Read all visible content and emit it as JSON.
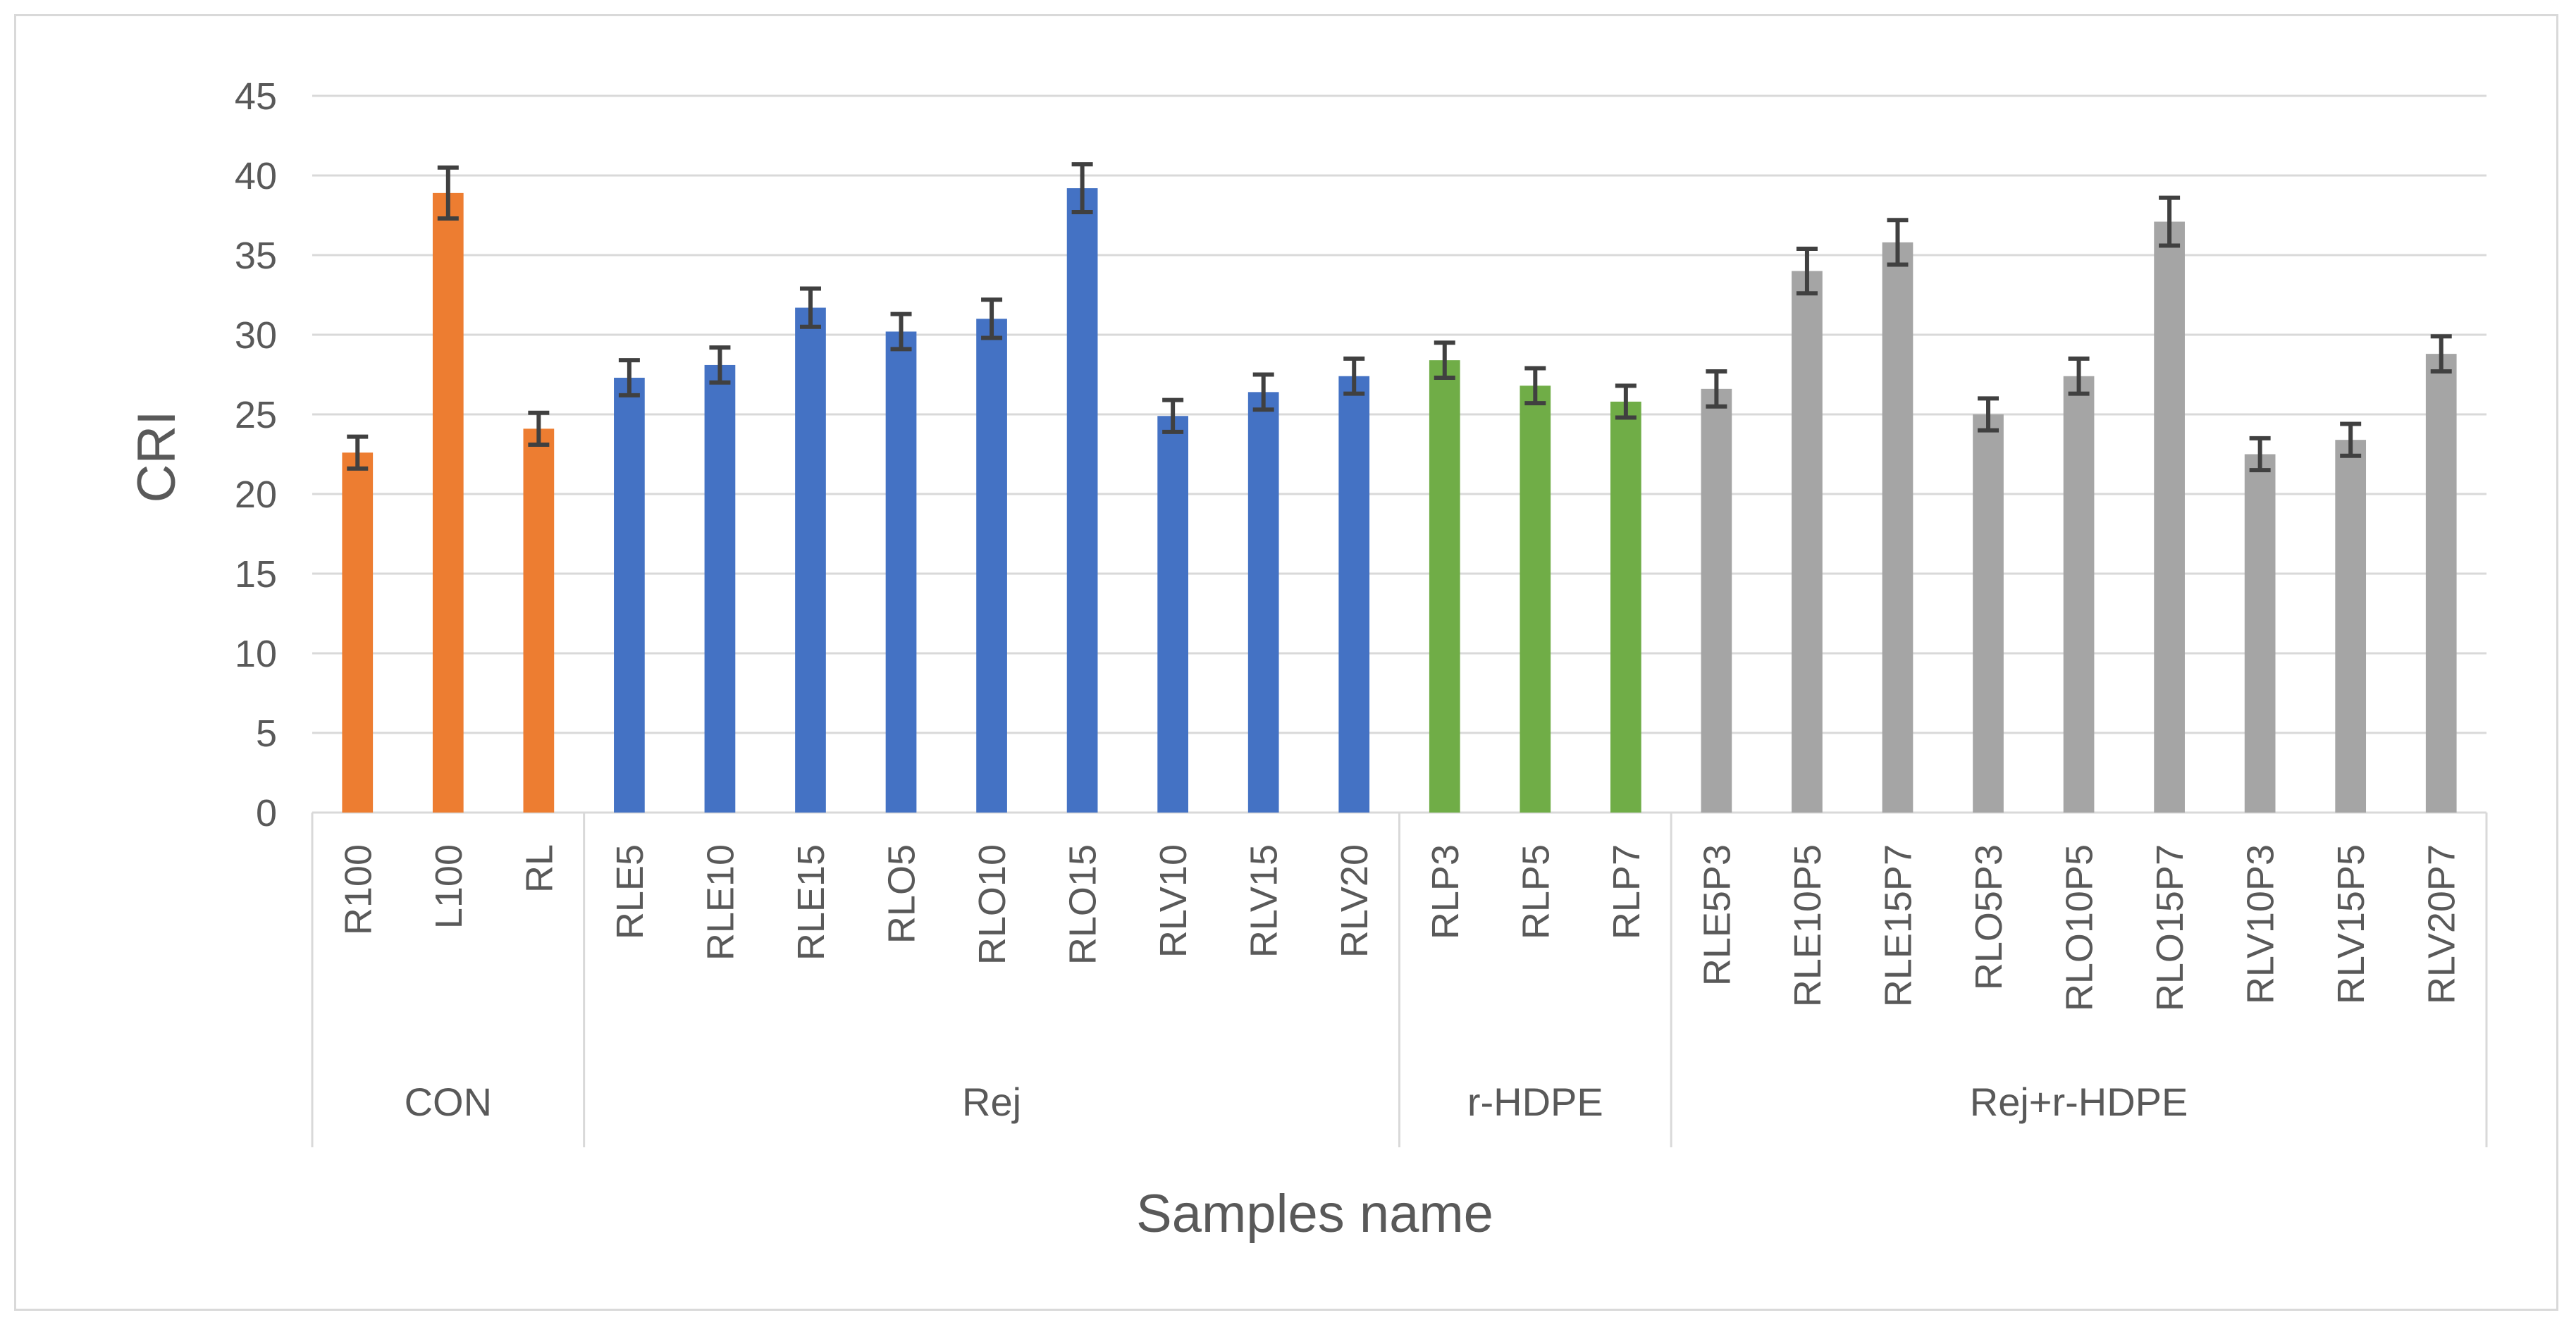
{
  "chart_data": {
    "type": "bar",
    "title": "",
    "xlabel": "Samples name",
    "ylabel": "CRI",
    "ylim": [
      0,
      45
    ],
    "yticks": [
      "0",
      "5",
      "10",
      "15",
      "20",
      "25",
      "30",
      "35",
      "40",
      "45"
    ],
    "grid": true,
    "legend": "none",
    "categories": [
      "R100",
      "L100",
      "RL",
      "RLE5",
      "RLE10",
      "RLE15",
      "RLO5",
      "RLO10",
      "RLO15",
      "RLV10",
      "RLV15",
      "RLV20",
      "RLP3",
      "RLP5",
      "RLP7",
      "RLE5P3",
      "RLE10P5",
      "RLE15P7",
      "RLO5P3",
      "RLO10P5",
      "RLO15P7",
      "RLV10P3",
      "RLV15P5",
      "RLV20P7"
    ],
    "values": [
      22.6,
      38.9,
      24.1,
      27.3,
      28.1,
      31.7,
      30.2,
      31.0,
      39.2,
      24.9,
      26.4,
      27.4,
      28.4,
      26.8,
      25.8,
      26.6,
      34.0,
      35.8,
      25.0,
      27.4,
      37.1,
      22.5,
      23.4,
      28.8
    ],
    "error": [
      1.0,
      1.6,
      1.0,
      1.1,
      1.1,
      1.2,
      1.1,
      1.2,
      1.5,
      1.0,
      1.1,
      1.1,
      1.1,
      1.1,
      1.0,
      1.1,
      1.4,
      1.4,
      1.0,
      1.1,
      1.5,
      1.0,
      1.0,
      1.1
    ],
    "groups": [
      {
        "name": "CON",
        "start": 0,
        "count": 3,
        "color": "#ed7d31"
      },
      {
        "name": "Rej",
        "start": 3,
        "count": 9,
        "color": "#4472c4"
      },
      {
        "name": "r-HDPE",
        "start": 12,
        "count": 3,
        "color": "#70ad47"
      },
      {
        "name": "Rej+r-HDPE",
        "start": 15,
        "count": 9,
        "color": "#a5a5a5"
      }
    ],
    "colors": {
      "grid": "#d9d9d9",
      "error_bar": "#404040",
      "text": "#595959"
    }
  }
}
